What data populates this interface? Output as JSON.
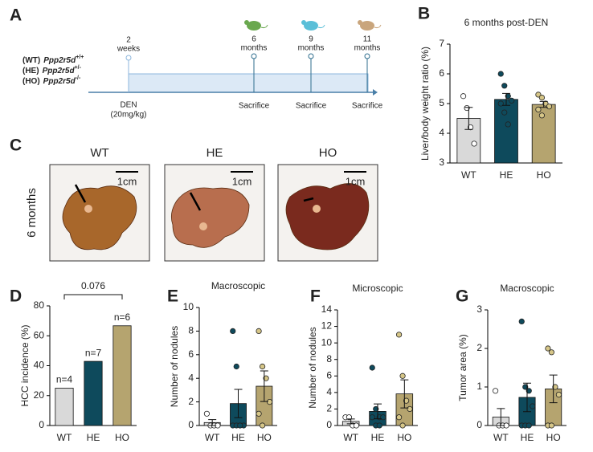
{
  "timeline": {
    "panel": "A",
    "genotypes": [
      {
        "code": "(WT)",
        "gene": "Ppp2r5d",
        "sup": "+/+"
      },
      {
        "code": "(HE)",
        "gene": "Ppp2r5d",
        "sup": "+/-"
      },
      {
        "code": "(HO)",
        "gene": "Ppp2r5d",
        "sup": "-/-"
      }
    ],
    "start": {
      "top": [
        "2",
        "weeks"
      ],
      "bottom": [
        "DEN",
        "(20mg/kg)"
      ]
    },
    "timepoints": [
      {
        "top": [
          "6",
          "months"
        ],
        "bottom": "Sacrifice"
      },
      {
        "top": [
          "9",
          "months"
        ],
        "bottom": "Sacrifice"
      },
      {
        "top": [
          "11",
          "months"
        ],
        "bottom": "Sacrifice"
      }
    ]
  },
  "photos": {
    "panel": "C",
    "row_label": "6 months",
    "columns": [
      "WT",
      "HE",
      "HO"
    ],
    "scale": "1cm"
  },
  "chart_data": [
    {
      "type": "bar",
      "panel": "B",
      "title": "6 months post-DEN",
      "ylabel": "Liver/body weight ratio (%)",
      "categories": [
        "WT",
        "HE",
        "HO"
      ],
      "values": [
        4.5,
        5.14,
        4.97
      ],
      "errors": [
        0.37,
        0.2,
        0.1
      ],
      "points": [
        [
          5.25,
          4.85,
          4.2,
          3.65
        ],
        [
          6.0,
          5.6,
          5.25,
          5.1,
          5.0,
          4.7,
          4.3
        ],
        [
          5.3,
          5.2,
          5.0,
          4.9,
          4.8,
          4.6
        ]
      ],
      "colors": [
        "#d9d9d9",
        "#0e4a5c",
        "#b5a46f"
      ],
      "point_colors": [
        "#ffffff",
        "#0e4a5c",
        "#d6c688"
      ],
      "ylim": [
        3,
        7
      ],
      "yticks": [
        3,
        4,
        5,
        6,
        7
      ]
    },
    {
      "type": "bar",
      "panel": "D",
      "ylabel": "HCC incidence (%)",
      "categories": [
        "WT",
        "HE",
        "HO"
      ],
      "values": [
        25,
        42.9,
        66.7
      ],
      "annotations": [
        "n=4",
        "n=7",
        "n=6"
      ],
      "bracket": "0.076",
      "colors": [
        "#d9d9d9",
        "#0e4a5c",
        "#b5a46f"
      ],
      "ylim": [
        0,
        80
      ],
      "yticks": [
        0,
        20,
        40,
        60,
        80
      ]
    },
    {
      "type": "bar",
      "panel": "E",
      "title": "Macroscopic",
      "ylabel": "Number of nodules",
      "categories": [
        "WT",
        "HE",
        "HO"
      ],
      "values": [
        0.25,
        1.86,
        3.33
      ],
      "errors": [
        0.25,
        1.2,
        1.3
      ],
      "points": [
        [
          1,
          0,
          0,
          0
        ],
        [
          8,
          5,
          0,
          0,
          0,
          0,
          0
        ],
        [
          8,
          5,
          4,
          2,
          1,
          0
        ]
      ],
      "colors": [
        "#d9d9d9",
        "#0e4a5c",
        "#b5a46f"
      ],
      "point_colors": [
        "#ffffff",
        "#0e4a5c",
        "#d6c688"
      ],
      "ylim": [
        0,
        10
      ],
      "yticks": [
        0,
        2,
        4,
        6,
        8,
        10
      ]
    },
    {
      "type": "bar",
      "panel": "F",
      "title": "Microscopic",
      "ylabel": "Number of nodules",
      "categories": [
        "WT",
        "HE",
        "HO"
      ],
      "values": [
        0.5,
        1.71,
        3.83
      ],
      "errors": [
        0.29,
        0.9,
        1.7
      ],
      "points": [
        [
          1,
          1,
          0,
          0
        ],
        [
          7,
          2,
          1,
          1,
          1,
          0,
          0
        ],
        [
          11,
          6,
          3,
          2,
          1,
          0
        ]
      ],
      "colors": [
        "#d9d9d9",
        "#0e4a5c",
        "#b5a46f"
      ],
      "point_colors": [
        "#ffffff",
        "#0e4a5c",
        "#d6c688"
      ],
      "ylim": [
        0,
        14
      ],
      "yticks": [
        0,
        2,
        4,
        6,
        8,
        10,
        12,
        14
      ]
    },
    {
      "type": "bar",
      "panel": "G",
      "title": "Macroscopic",
      "ylabel": "Tumor area (%)",
      "categories": [
        "WT",
        "HE",
        "HO"
      ],
      "values": [
        0.22,
        0.73,
        0.95
      ],
      "errors": [
        0.22,
        0.37,
        0.36
      ],
      "points": [
        [
          0.9,
          0,
          0,
          0
        ],
        [
          2.7,
          1.0,
          0.9,
          0.5,
          0,
          0,
          0
        ],
        [
          2.0,
          1.9,
          1.0,
          0.8,
          0,
          0
        ]
      ],
      "colors": [
        "#d9d9d9",
        "#0e4a5c",
        "#b5a46f"
      ],
      "point_colors": [
        "#ffffff",
        "#0e4a5c",
        "#d6c688"
      ],
      "ylim": [
        0,
        3
      ],
      "yticks": [
        0,
        1,
        2,
        3
      ]
    }
  ]
}
